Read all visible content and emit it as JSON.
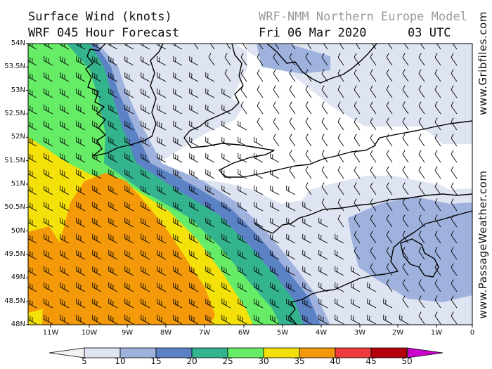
{
  "header": {
    "title_line1": "Surface Wind (knots)",
    "title_line2": "WRF 045 Hour Forecast",
    "model": "WRF-NMM Northern Europe Model",
    "date": "Fri 06 Mar 2020",
    "time": "03 UTC"
  },
  "sidebar": {
    "site1": "www.Gribfiles.com",
    "site2": "www.PassageWeather.com"
  },
  "axes": {
    "lat_labels": [
      "54N",
      "53.5N",
      "53N",
      "52.5N",
      "52N",
      "51.5N",
      "51N",
      "50.5N",
      "50N",
      "49.5N",
      "49N",
      "48.5N",
      "48N"
    ],
    "lon_labels": [
      "11W",
      "10W",
      "9W",
      "8W",
      "7W",
      "6W",
      "5W",
      "4W",
      "3W",
      "2W",
      "1W",
      "0"
    ]
  },
  "colorbar": {
    "labels": [
      "5",
      "10",
      "15",
      "20",
      "25",
      "30",
      "35",
      "40",
      "45",
      "50"
    ],
    "colors": [
      "#f2f2f2",
      "#dfe4f2",
      "#9fb2dd",
      "#5c82c6",
      "#34b38f",
      "#67ec67",
      "#f4e10a",
      "#f49a0a",
      "#ee3b3b",
      "#b4000a",
      "#cc00cc"
    ]
  },
  "map": {
    "palette": {
      "w5": "#ffffff",
      "w10": "#dfe4f2",
      "w15": "#9fb2dd",
      "w20": "#5c82c6",
      "w25": "#34b38f",
      "w30": "#67ec67",
      "w35": "#f4e10a",
      "w40": "#f49a0a"
    },
    "coast_color": "#000000",
    "barb_color": "#000000"
  }
}
